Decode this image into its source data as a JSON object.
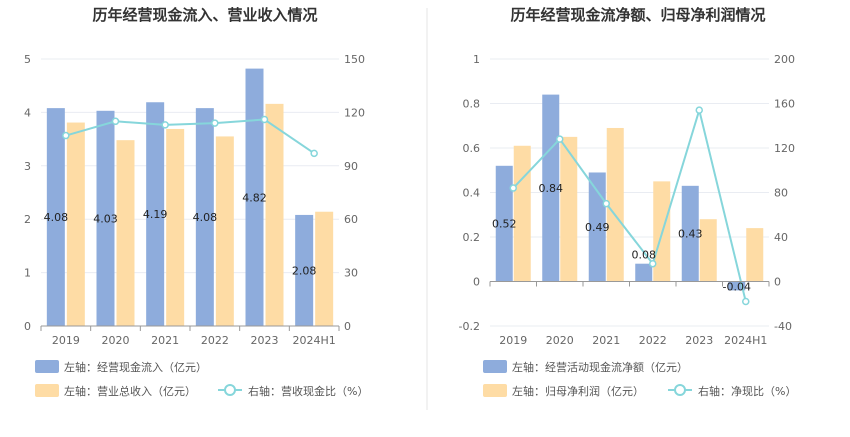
{
  "colors": {
    "primary_bar": "#8eacdc",
    "secondary_bar": "#fedca5",
    "line": "#86d6db",
    "grid": "#e9ecf2",
    "axis": "#999999",
    "divider": "#e6e6e6"
  },
  "chart_data": [
    {
      "type": "bar",
      "title": "历年经营现金流入、营业收入情况",
      "categories": [
        "2019",
        "2020",
        "2021",
        "2022",
        "2023",
        "2024H1"
      ],
      "left_axis": {
        "ticks": [
          "0",
          "1",
          "2",
          "3",
          "4",
          "5"
        ],
        "ylim": [
          0,
          5
        ]
      },
      "right_axis": {
        "ticks": [
          "0",
          "30",
          "60",
          "90",
          "120",
          "150"
        ],
        "ylim": [
          0,
          150
        ]
      },
      "series": [
        {
          "name": "左轴：经营现金流入（亿元）",
          "type": "bar",
          "axis": "left",
          "values": [
            4.08,
            4.03,
            4.19,
            4.08,
            4.82,
            2.08
          ],
          "labels": [
            "4.08",
            "4.03",
            "4.19",
            "4.08",
            "4.82",
            "2.08"
          ]
        },
        {
          "name": "左轴：营业总收入（亿元）",
          "type": "bar",
          "axis": "left",
          "values": [
            3.81,
            3.48,
            3.69,
            3.55,
            4.16,
            2.14
          ]
        },
        {
          "name": "右轴：营收现金比（%）",
          "type": "line",
          "axis": "right",
          "values": [
            107,
            115,
            113,
            114,
            116,
            97
          ]
        }
      ]
    },
    {
      "type": "bar",
      "title": "历年经营现金流净额、归母净利润情况",
      "categories": [
        "2019",
        "2020",
        "2021",
        "2022",
        "2023",
        "2024H1"
      ],
      "left_axis": {
        "ticks": [
          "-0.2",
          "0",
          "0.2",
          "0.4",
          "0.6",
          "0.8",
          "1"
        ],
        "ylim": [
          -0.2,
          1
        ]
      },
      "right_axis": {
        "ticks": [
          "-40",
          "0",
          "40",
          "80",
          "120",
          "160",
          "200"
        ],
        "ylim": [
          -40,
          200
        ]
      },
      "series": [
        {
          "name": "左轴：经营活动现金流净额（亿元）",
          "type": "bar",
          "axis": "left",
          "values": [
            0.52,
            0.84,
            0.49,
            0.08,
            0.43,
            -0.04
          ],
          "labels": [
            "0.52",
            "0.84",
            "0.49",
            "0.08",
            "0.43",
            "-0.04"
          ]
        },
        {
          "name": "左轴：归母净利润（亿元）",
          "type": "bar",
          "axis": "left",
          "values": [
            0.61,
            0.65,
            0.69,
            0.45,
            0.28,
            0.24
          ]
        },
        {
          "name": "右轴：净现比（%）",
          "type": "line",
          "axis": "right",
          "values": [
            84,
            128,
            70,
            16,
            154,
            -18
          ]
        }
      ]
    }
  ]
}
